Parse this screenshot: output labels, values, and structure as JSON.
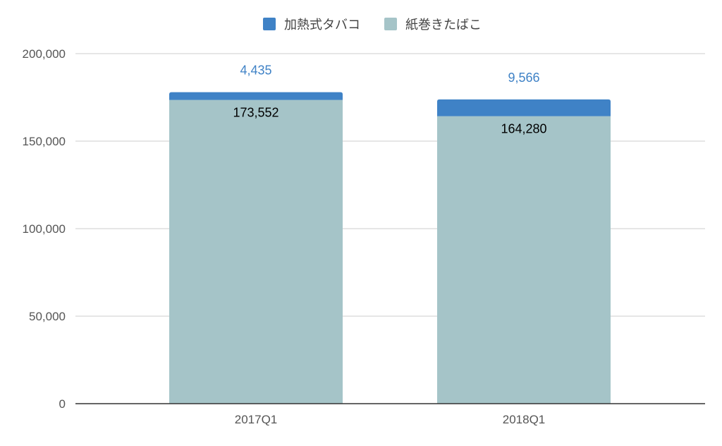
{
  "chart_data": {
    "type": "bar",
    "stacked": true,
    "categories": [
      "2017Q1",
      "2018Q1"
    ],
    "series": [
      {
        "name": "紙巻きたばこ",
        "color": "#a5c4c8",
        "label_color": "#000000",
        "values": [
          173552,
          164280
        ],
        "labels": [
          "173,552",
          "164,280"
        ]
      },
      {
        "name": "加熱式タバコ",
        "color": "#3f82c6",
        "label_color": "#3f82c6",
        "values": [
          4435,
          9566
        ],
        "labels": [
          "4,435",
          "9,566"
        ]
      }
    ],
    "legend_order": [
      1,
      0
    ],
    "ylim": [
      0,
      200000
    ],
    "yticks": [
      0,
      50000,
      100000,
      150000,
      200000
    ],
    "ytick_labels": [
      "0",
      "50,000",
      "100,000",
      "150,000",
      "200,000"
    ],
    "grid": true,
    "legend_position": "top"
  }
}
